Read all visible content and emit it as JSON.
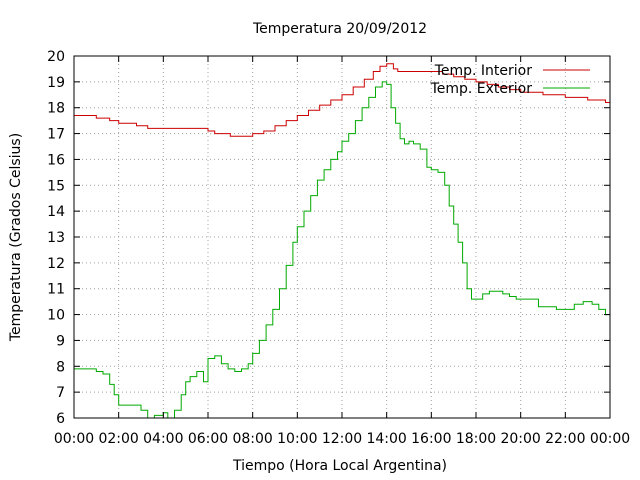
{
  "chart_data": {
    "type": "line",
    "title": "Temperatura 20/09/2012",
    "xlabel": "Tiempo (Hora Local Argentina)",
    "ylabel": "Temperatura (Grados Celsius)",
    "xlim": [
      0,
      24
    ],
    "ylim": [
      6,
      20
    ],
    "grid": true,
    "legend_position": "top-right",
    "x_ticks": [
      {
        "value": 0,
        "label": "00:00"
      },
      {
        "value": 2,
        "label": "02:00"
      },
      {
        "value": 4,
        "label": "04:00"
      },
      {
        "value": 6,
        "label": "06:00"
      },
      {
        "value": 8,
        "label": "08:00"
      },
      {
        "value": 10,
        "label": "10:00"
      },
      {
        "value": 12,
        "label": "12:00"
      },
      {
        "value": 14,
        "label": "14:00"
      },
      {
        "value": 16,
        "label": "16:00"
      },
      {
        "value": 18,
        "label": "18:00"
      },
      {
        "value": 20,
        "label": "20:00"
      },
      {
        "value": 22,
        "label": "22:00"
      },
      {
        "value": 24,
        "label": "00:00"
      }
    ],
    "y_ticks": [
      6,
      7,
      8,
      9,
      10,
      11,
      12,
      13,
      14,
      15,
      16,
      17,
      18,
      19,
      20
    ],
    "series": [
      {
        "name": "Temp. Interior",
        "color": "#cc0000",
        "x": [
          0,
          0.9,
          1.0,
          1.6,
          2.0,
          2.8,
          3.3,
          4.0,
          5.0,
          5.4,
          6.0,
          6.3,
          7.0,
          7.5,
          7.8,
          8.0,
          8.5,
          9.0,
          9.5,
          10.0,
          10.5,
          11.0,
          11.5,
          12.0,
          12.5,
          13.0,
          13.4,
          13.7,
          14.0,
          14.3,
          14.5,
          15.0,
          16.0,
          16.5,
          17.0,
          17.5,
          18.0,
          18.5,
          19.0,
          19.5,
          20.0,
          20.5,
          21.0,
          21.5,
          22.0,
          22.5,
          23.0,
          23.5,
          23.8,
          24.0
        ],
        "y": [
          17.7,
          17.7,
          17.6,
          17.5,
          17.4,
          17.3,
          17.2,
          17.2,
          17.2,
          17.2,
          17.1,
          17.0,
          16.9,
          16.9,
          16.9,
          17.0,
          17.1,
          17.3,
          17.5,
          17.7,
          17.9,
          18.1,
          18.3,
          18.5,
          18.8,
          19.1,
          19.4,
          19.6,
          19.7,
          19.5,
          19.4,
          19.4,
          19.4,
          19.3,
          19.2,
          19.1,
          19.0,
          18.9,
          18.8,
          18.7,
          18.6,
          18.6,
          18.5,
          18.5,
          18.4,
          18.4,
          18.3,
          18.3,
          18.2,
          18.2
        ]
      },
      {
        "name": "Temp. Exterior",
        "color": "#00aa00",
        "x": [
          0,
          0.5,
          1.0,
          1.3,
          1.6,
          1.8,
          2.0,
          2.3,
          2.6,
          3.0,
          3.3,
          3.6,
          4.0,
          4.2,
          4.5,
          4.8,
          5.0,
          5.2,
          5.5,
          5.8,
          6.0,
          6.3,
          6.6,
          6.9,
          7.2,
          7.5,
          7.8,
          8.0,
          8.3,
          8.6,
          8.9,
          9.2,
          9.5,
          9.8,
          10.0,
          10.3,
          10.6,
          10.9,
          11.2,
          11.5,
          11.8,
          12.0,
          12.3,
          12.6,
          12.9,
          13.2,
          13.5,
          13.8,
          14.0,
          14.2,
          14.4,
          14.6,
          14.8,
          15.0,
          15.2,
          15.5,
          15.8,
          16.0,
          16.3,
          16.6,
          16.8,
          17.0,
          17.2,
          17.4,
          17.6,
          17.8,
          18.0,
          18.3,
          18.6,
          18.9,
          19.2,
          19.5,
          19.8,
          20.0,
          20.4,
          20.8,
          21.2,
          21.6,
          22.0,
          22.4,
          22.8,
          23.2,
          23.5,
          23.8,
          24.0
        ],
        "y": [
          7.9,
          7.9,
          7.8,
          7.7,
          7.3,
          6.9,
          6.5,
          6.5,
          6.5,
          6.3,
          6.0,
          6.1,
          6.2,
          6.0,
          6.3,
          6.9,
          7.4,
          7.6,
          7.8,
          7.4,
          8.3,
          8.4,
          8.1,
          7.9,
          7.8,
          7.9,
          8.1,
          8.5,
          9.0,
          9.6,
          10.2,
          11.0,
          11.9,
          12.8,
          13.4,
          14.0,
          14.6,
          15.2,
          15.6,
          16.0,
          16.3,
          16.7,
          17.0,
          17.5,
          18.0,
          18.4,
          18.8,
          19.0,
          18.9,
          18.0,
          17.4,
          16.8,
          16.6,
          16.7,
          16.6,
          16.4,
          15.7,
          15.6,
          15.5,
          15.0,
          14.2,
          13.5,
          12.8,
          12.0,
          11.0,
          10.6,
          10.6,
          10.8,
          10.9,
          10.9,
          10.8,
          10.7,
          10.6,
          10.6,
          10.6,
          10.3,
          10.3,
          10.2,
          10.2,
          10.4,
          10.5,
          10.4,
          10.2,
          10.0,
          9.9
        ]
      }
    ]
  }
}
